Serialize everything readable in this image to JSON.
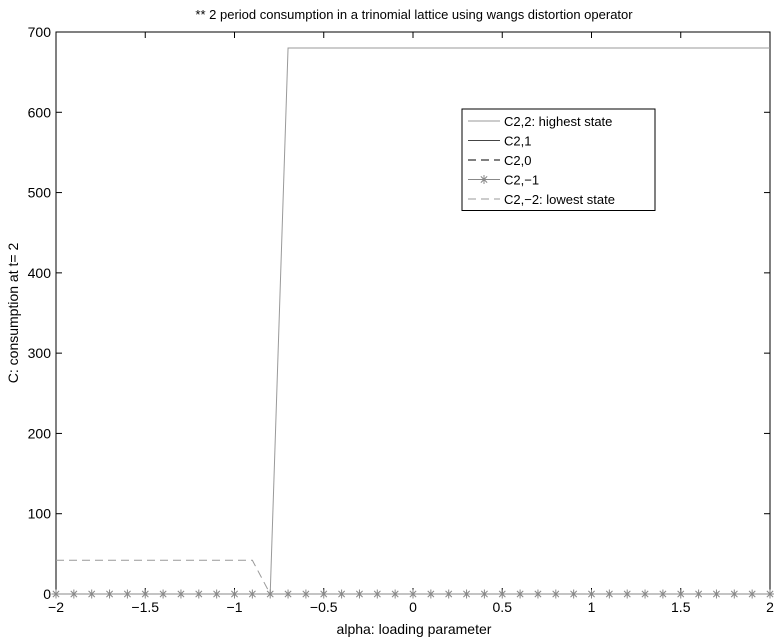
{
  "chart_data": {
    "type": "line",
    "title": "** 2 period consumption in a trinomial lattice using wangs distortion operator",
    "xlabel": "alpha: loading parameter",
    "ylabel": "C: consumption at t= 2",
    "xlim": [
      -2,
      2
    ],
    "ylim": [
      0,
      700
    ],
    "xticks": [
      -2,
      -1.5,
      -1,
      -0.5,
      0,
      0.5,
      1,
      1.5,
      2
    ],
    "xtick_labels": [
      "−2",
      "−1.5",
      "−1",
      "−0.5",
      "0",
      "0.5",
      "1",
      "1.5",
      "2"
    ],
    "yticks": [
      0,
      100,
      200,
      300,
      400,
      500,
      600,
      700
    ],
    "ytick_labels": [
      "0",
      "100",
      "200",
      "300",
      "400",
      "500",
      "600",
      "700"
    ],
    "grid": false,
    "legend_position": "top-right",
    "series": [
      {
        "name": "C2,2: highest state",
        "style": "solid",
        "color": "#999999",
        "x": [
          -2,
          -0.8,
          -0.7,
          2
        ],
        "y": [
          0,
          0,
          680,
          680
        ]
      },
      {
        "name": "C2,1",
        "style": "solid",
        "color": "#444444",
        "x": [
          -2,
          2
        ],
        "y": [
          0,
          0
        ]
      },
      {
        "name": "C2,0",
        "style": "dashed",
        "color": "#000000",
        "x": [
          -2,
          2
        ],
        "y": [
          0,
          0
        ]
      },
      {
        "name": "C2,−1",
        "style": "star",
        "color": "#888888",
        "x": [
          -2,
          -1.9,
          -1.8,
          -1.7,
          -1.6,
          -1.5,
          -1.4,
          -1.3,
          -1.2,
          -1.1,
          -1.0,
          -0.9,
          -0.8,
          -0.7,
          -0.6,
          -0.5,
          -0.4,
          -0.3,
          -0.2,
          -0.1,
          0,
          0.1,
          0.2,
          0.3,
          0.4,
          0.5,
          0.6,
          0.7,
          0.8,
          0.9,
          1.0,
          1.1,
          1.2,
          1.3,
          1.4,
          1.5,
          1.6,
          1.7,
          1.8,
          1.9,
          2.0
        ],
        "y": [
          0,
          0,
          0,
          0,
          0,
          0,
          0,
          0,
          0,
          0,
          0,
          0,
          0,
          0,
          0,
          0,
          0,
          0,
          0,
          0,
          0,
          0,
          0,
          0,
          0,
          0,
          0,
          0,
          0,
          0,
          0,
          0,
          0,
          0,
          0,
          0,
          0,
          0,
          0,
          0,
          0
        ]
      },
      {
        "name": "C2,−2: lowest state",
        "style": "dashed",
        "color": "#999999",
        "x": [
          -2,
          -0.9,
          -0.8,
          2
        ],
        "y": [
          42,
          42,
          0,
          0
        ]
      }
    ]
  }
}
